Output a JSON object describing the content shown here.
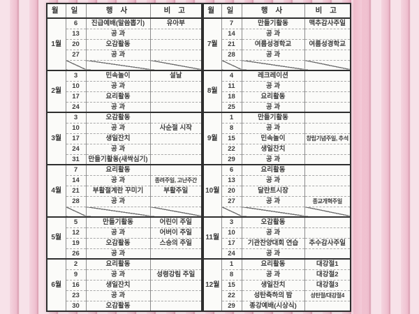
{
  "header": {
    "month": "월",
    "day": "일",
    "event": "행 사",
    "note": "비 고"
  },
  "months": [
    {
      "label": "1월",
      "rows": [
        {
          "day": "6",
          "event": "진급예배(말씀뽑기)",
          "note": "유아부"
        },
        {
          "day": "13",
          "event": "공 과",
          "note": ""
        },
        {
          "day": "20",
          "event": "오감활동",
          "note": ""
        },
        {
          "day": "27",
          "event": "공 과",
          "note": ""
        },
        {
          "diagonal": true
        }
      ]
    },
    {
      "label": "2월",
      "rows": [
        {
          "day": "3",
          "event": "민속놀이",
          "note": "설날"
        },
        {
          "day": "10",
          "event": "공 과",
          "note": ""
        },
        {
          "day": "17",
          "event": "요리활동",
          "note": ""
        },
        {
          "day": "24",
          "event": "공 과",
          "note": ""
        }
      ]
    },
    {
      "label": "3월",
      "rows": [
        {
          "day": "3",
          "event": "오감활동",
          "note": ""
        },
        {
          "day": "10",
          "event": "공 과",
          "note": "사순절 시작"
        },
        {
          "day": "17",
          "event": "생일잔치",
          "note": ""
        },
        {
          "day": "24",
          "event": "공 과",
          "note": ""
        },
        {
          "day": "31",
          "event": "만들기활동(새싹심기)",
          "note": ""
        }
      ]
    },
    {
      "label": "4월",
      "rows": [
        {
          "day": "7",
          "event": "요리활동",
          "note": ""
        },
        {
          "day": "14",
          "event": "공 과",
          "note": "종려주일, 고난주간",
          "small": true
        },
        {
          "day": "21",
          "event": "부활절계란 꾸미기",
          "note": "부활주일"
        },
        {
          "day": "28",
          "event": "공 과",
          "note": ""
        },
        {
          "diagonal": true
        }
      ]
    },
    {
      "label": "5월",
      "rows": [
        {
          "day": "5",
          "event": "만들기활동",
          "note": "어린이 주일"
        },
        {
          "day": "12",
          "event": "공 과",
          "note": "어버이 주일"
        },
        {
          "day": "19",
          "event": "오감활동",
          "note": "스승의 주일"
        },
        {
          "day": "26",
          "event": "공 과",
          "note": ""
        }
      ]
    },
    {
      "label": "6월",
      "rows": [
        {
          "day": "2",
          "event": "요리활동",
          "note": ""
        },
        {
          "day": "9",
          "event": "공 과",
          "note": "성령강림 주일"
        },
        {
          "day": "16",
          "event": "생일잔치",
          "note": ""
        },
        {
          "day": "23",
          "event": "공 과",
          "note": ""
        },
        {
          "day": "30",
          "event": "오감활동",
          "note": ""
        }
      ]
    },
    {
      "label": "7월",
      "rows": [
        {
          "day": "7",
          "event": "만들기활동",
          "note": "맥추감사주일"
        },
        {
          "day": "14",
          "event": "공 과",
          "note": ""
        },
        {
          "day": "21",
          "event": "여름성경학교",
          "note": "여름성경학교"
        },
        {
          "day": "28",
          "event": "공 과",
          "note": ""
        },
        {
          "diagonal": true
        }
      ]
    },
    {
      "label": "8월",
      "rows": [
        {
          "day": "4",
          "event": "레크레이션",
          "note": ""
        },
        {
          "day": "11",
          "event": "공 과",
          "note": ""
        },
        {
          "day": "18",
          "event": "요리활동",
          "note": ""
        },
        {
          "day": "25",
          "event": "공 과",
          "note": ""
        }
      ]
    },
    {
      "label": "9월",
      "rows": [
        {
          "day": "1",
          "event": "만들기활동",
          "note": ""
        },
        {
          "day": "8",
          "event": "공 과",
          "note": ""
        },
        {
          "day": "15",
          "event": "민속놀이",
          "note": "창립기념주일, 추석",
          "small": true
        },
        {
          "day": "22",
          "event": "생일잔치",
          "note": ""
        },
        {
          "day": "29",
          "event": "공 과",
          "note": ""
        }
      ]
    },
    {
      "label": "10월",
      "rows": [
        {
          "day": "6",
          "event": "요리활동",
          "note": ""
        },
        {
          "day": "13",
          "event": "공 과",
          "note": ""
        },
        {
          "day": "20",
          "event": "달란트시장",
          "note": ""
        },
        {
          "day": "27",
          "event": "공 과",
          "note": "종교개혁주일",
          "small": true
        },
        {
          "diagonal": true
        }
      ]
    },
    {
      "label": "11월",
      "rows": [
        {
          "day": "3",
          "event": "오감활동",
          "note": ""
        },
        {
          "day": "10",
          "event": "공 과",
          "note": ""
        },
        {
          "day": "17",
          "event": "기관찬양대회 연습",
          "note": "추수감사주일"
        },
        {
          "day": "24",
          "event": "공 과",
          "note": ""
        }
      ]
    },
    {
      "label": "12월",
      "rows": [
        {
          "day": "1",
          "event": "요리활동",
          "note": "대강절1"
        },
        {
          "day": "8",
          "event": "공 과",
          "note": "대강절2"
        },
        {
          "day": "15",
          "event": "생일잔치",
          "note": "대강절3"
        },
        {
          "day": "22",
          "event": "성탄축하의 밤",
          "note": "성탄절/대강절4",
          "small": true
        },
        {
          "day": "29",
          "event": "종강예배(시상식)",
          "note": ""
        }
      ]
    }
  ],
  "layout": {
    "left_cols": [
      27,
      29,
      92,
      74
    ],
    "right_cols": [
      26,
      29,
      90,
      66
    ]
  },
  "colors": {
    "background_pink": "#f6dfe6",
    "stripe_rose": "#cf8da0",
    "paper": "#fbfbf9",
    "border_dark": "#2e2e2e",
    "text": "#3d3d3d"
  }
}
